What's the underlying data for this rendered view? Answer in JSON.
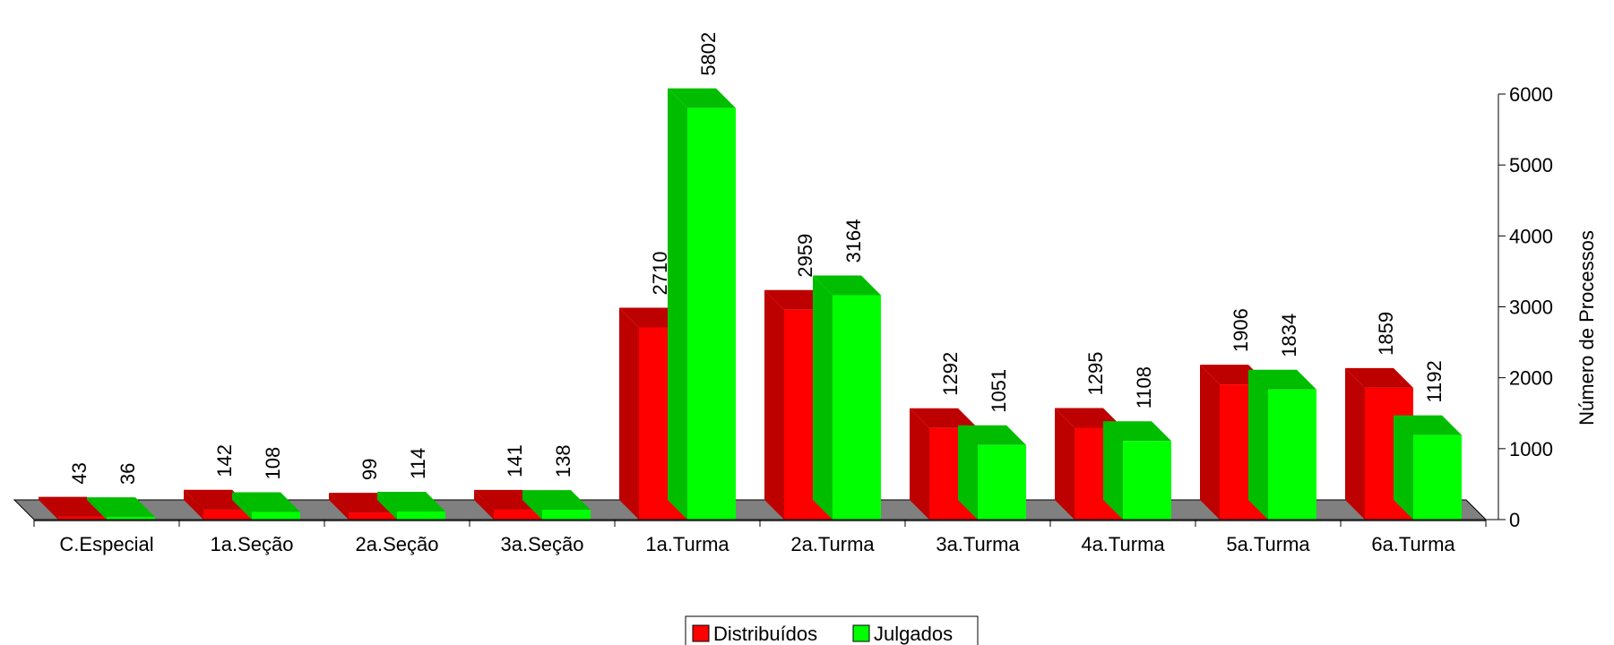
{
  "chart_data": {
    "type": "bar",
    "categories": [
      "C.Especial",
      "1a.Seção",
      "2a.Seção",
      "3a.Seção",
      "1a.Turma",
      "2a.Turma",
      "3a.Turma",
      "4a.Turma",
      "5a.Turma",
      "6a.Turma"
    ],
    "series": [
      {
        "name": "Distribuídos",
        "color": "#ff0000",
        "values": [
          43,
          142,
          99,
          141,
          2710,
          2959,
          1292,
          1295,
          1906,
          1859
        ]
      },
      {
        "name": "Julgados",
        "color": "#00ff00",
        "values": [
          36,
          108,
          114,
          138,
          5802,
          3164,
          1051,
          1108,
          1834,
          1192
        ]
      }
    ],
    "title": "",
    "xlabel": "",
    "ylabel": "Número de Processos",
    "ylim": [
      0,
      6000
    ],
    "yticks": [
      0,
      1000,
      2000,
      3000,
      4000,
      5000,
      6000
    ],
    "y_axis_side": "right",
    "grid": false,
    "three_d": true,
    "floor_color": "#808080",
    "legend_position": "bottom-center",
    "data_labels": true,
    "data_label_orientation": "vertical"
  }
}
